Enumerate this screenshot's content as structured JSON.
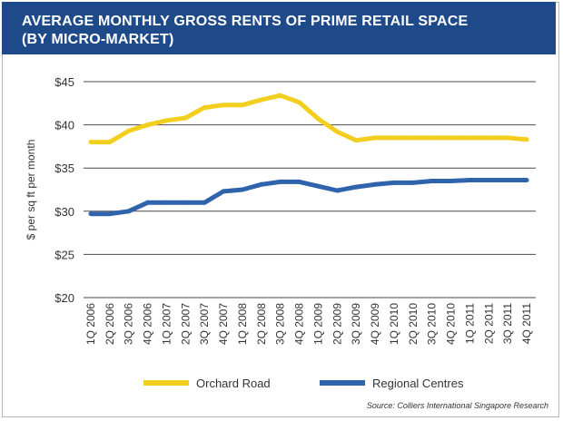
{
  "header": {
    "title_line1": "AVERAGE MONTHLY GROSS RENTS OF PRIME RETAIL SPACE",
    "title_line2": "(BY MICRO-MARKET)"
  },
  "source": "Source: Colliers International Singapore Research",
  "colors": {
    "banner": "#1e4a8a",
    "orchard": "#f2cf1f",
    "regional": "#2f63ab"
  },
  "chart_data": {
    "type": "line",
    "title": "AVERAGE MONTHLY GROSS RENTS OF PRIME RETAIL SPACE (BY MICRO-MARKET)",
    "ylabel": "$ per sq ft per month",
    "xlabel": "",
    "ylim": [
      20,
      45
    ],
    "yticks": [
      20,
      25,
      30,
      35,
      40,
      45
    ],
    "ytick_labels": [
      "$20",
      "$25",
      "$30",
      "$35",
      "$40",
      "$45"
    ],
    "grid": "horizontal",
    "legend": "bottom",
    "categories": [
      "1Q 2006",
      "2Q 2006",
      "3Q 2006",
      "4Q 2006",
      "1Q 2007",
      "2Q 2007",
      "3Q 2007",
      "4Q 2007",
      "1Q 2008",
      "2Q 2008",
      "3Q 2008",
      "4Q 2008",
      "1Q 2009",
      "2Q 2009",
      "3Q 2009",
      "4Q 2009",
      "1Q 2010",
      "2Q 2010",
      "3Q 2010",
      "4Q 2010",
      "1Q 2011",
      "2Q 2011",
      "3Q 2011",
      "4Q 2011"
    ],
    "series": [
      {
        "name": "Orchard Road",
        "color": "#f2cf1f",
        "values": [
          38.0,
          38.0,
          39.3,
          40.0,
          40.5,
          40.8,
          42.0,
          42.3,
          42.3,
          42.9,
          43.4,
          42.6,
          40.7,
          39.2,
          38.2,
          38.5,
          38.5,
          38.5,
          38.5,
          38.5,
          38.5,
          38.5,
          38.5,
          38.3
        ]
      },
      {
        "name": "Regional Centres",
        "color": "#2f63ab",
        "values": [
          29.7,
          29.7,
          30.0,
          31.0,
          31.0,
          31.0,
          31.0,
          32.3,
          32.5,
          33.1,
          33.4,
          33.4,
          32.9,
          32.4,
          32.8,
          33.1,
          33.3,
          33.3,
          33.5,
          33.5,
          33.6,
          33.6,
          33.6,
          33.6
        ]
      }
    ]
  }
}
